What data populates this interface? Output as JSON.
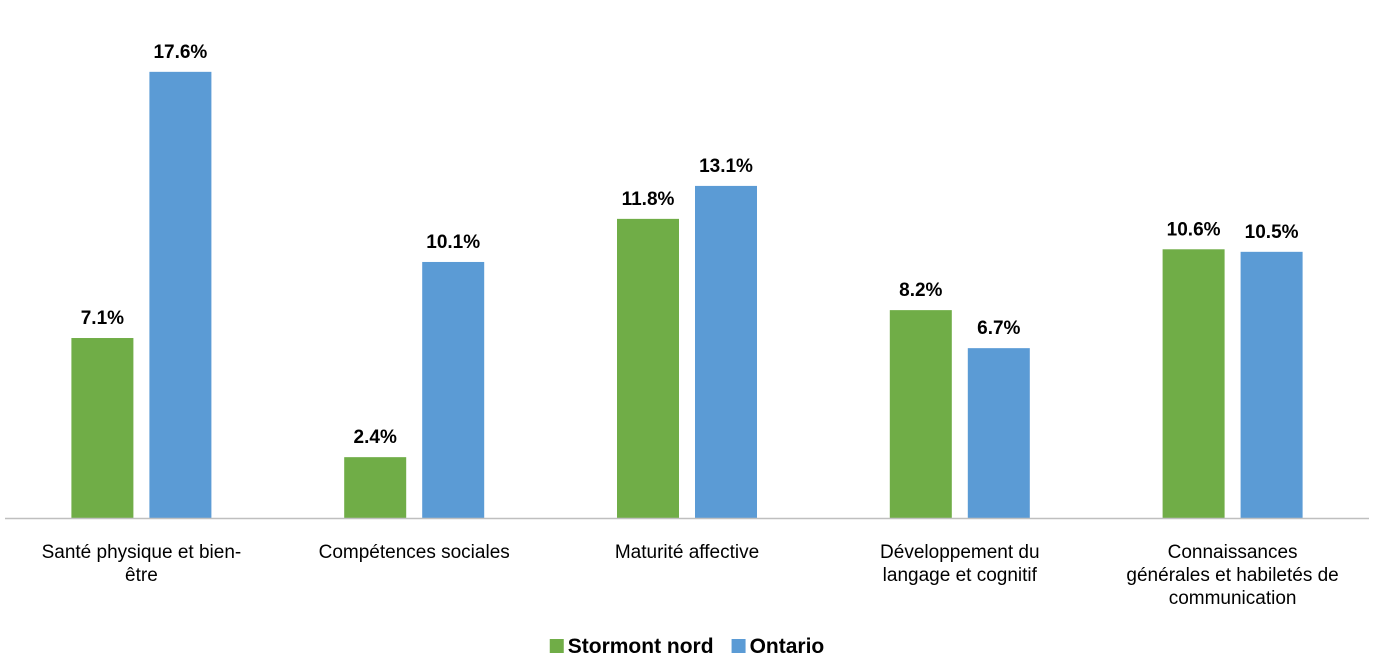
{
  "chart_data": {
    "type": "bar",
    "categories": [
      [
        "Santé physique et bien-",
        "être"
      ],
      [
        "Compétences sociales"
      ],
      [
        "Maturité affective"
      ],
      [
        "Développement du",
        "langage et cognitif"
      ],
      [
        "Connaissances",
        "générales et habiletés de",
        "communication"
      ]
    ],
    "series": [
      {
        "name": "Stormont nord",
        "color": "#70ad47",
        "values": [
          7.1,
          2.4,
          11.8,
          8.2,
          10.6
        ],
        "labels": [
          "7.1%",
          "2.4%",
          "11.8%",
          "8.2%",
          "10.6%"
        ]
      },
      {
        "name": "Ontario",
        "color": "#5b9bd5",
        "values": [
          17.6,
          10.1,
          13.1,
          6.7,
          10.5
        ],
        "labels": [
          "17.6%",
          "10.1%",
          "13.1%",
          "6.7%",
          "10.5%"
        ]
      }
    ],
    "ylim": [
      0,
      20
    ],
    "grid": false,
    "legend_position": "bottom",
    "axis_color": "#bfbfbf"
  }
}
